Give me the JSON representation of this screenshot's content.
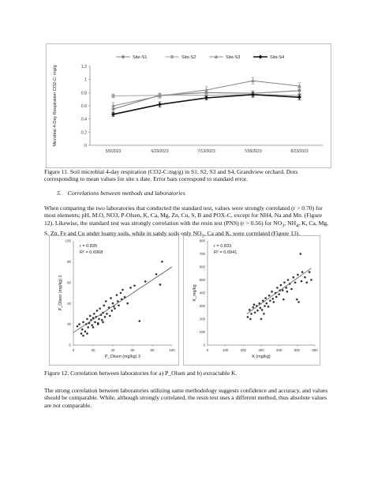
{
  "figure11": {
    "caption": "Figure 11. Soil microbial 4-day respiration (CO2-C:mg/g) in S1, S2, S3 and S4, Grandview orchard. Dots corresponding to mean values for site x date. Error bars correspond to standard error.",
    "chart_data": {
      "type": "line",
      "ylabel": "Microbial 4-Day Respiration CO2-C: mg/g",
      "xlabel": "",
      "categories": [
        "5/9/2023",
        "6/29/2023",
        "7/13/2023",
        "7/28/2023",
        "8/23/2023"
      ],
      "ylim": [
        0,
        1.2
      ],
      "yticks": [
        0,
        0.2,
        0.4,
        0.6,
        0.8,
        1.0,
        1.2
      ],
      "grid": false,
      "legend_position": "top",
      "series": [
        {
          "name": "Site-S1",
          "color": "#808080",
          "marker": "diamond",
          "values": [
            0.55,
            0.76,
            0.8,
            0.79,
            0.83
          ],
          "err": [
            0.04,
            0.03,
            0.04,
            0.04,
            0.04
          ]
        },
        {
          "name": "Site-S2",
          "color": "#a6a6a6",
          "marker": "square",
          "values": [
            0.75,
            0.76,
            0.76,
            0.77,
            0.76
          ],
          "err": [
            0.03,
            0.03,
            0.03,
            0.03,
            0.03
          ]
        },
        {
          "name": "Site-S3",
          "color": "#8c8c8c",
          "marker": "triangle",
          "values": [
            0.6,
            0.75,
            0.84,
            0.98,
            0.9
          ],
          "err": [
            0.05,
            0.04,
            0.05,
            0.05,
            0.05
          ]
        },
        {
          "name": "Site-S4",
          "color": "#111111",
          "marker": "diamond",
          "values": [
            0.47,
            0.62,
            0.72,
            0.77,
            0.73
          ],
          "err": [
            0.03,
            0.04,
            0.03,
            0.04,
            0.04
          ]
        }
      ]
    }
  },
  "section": {
    "number": "5.",
    "title": "Correlations between methods and laboratories",
    "paragraph1_a": "When comparing the two laboratories that conducted the standard test, values were strongly correlated (r > 0.70) for most elements; pH, M.O, NO3, P-Olsen, K, Ca, Mg, Zn, Cu, S, B and POX-C, except for NH4, Na and Mn. (Figure 12). Likewise, the standard test was strongly correlation with the resin test (PNS) (r > 0.56) for NO",
    "paragraph1_sub1": "3",
    "paragraph1_b": ", NH",
    "paragraph1_sub2": "4",
    "paragraph1_c": ", K, Ca, Mg, S, Zn, Fe and Cu under loamy soils, while in sandy soils only NO",
    "paragraph1_sub3": "3",
    "paragraph1_d": ", Ca and K, were correlated (Figure 13)."
  },
  "figure12": {
    "caption": "Figure 12. Correlation between laboratories for a) P_Olsen and b) extractable K.",
    "panel_a": {
      "chart_data": {
        "type": "scatter",
        "xlabel": "P_Olsen (mg/kg) 3",
        "ylabel": "P_Olsen (mg/kg) 1",
        "r_label": "r = 0.835",
        "r2_label": "R² = 0.6968",
        "xlim": [
          0,
          100
        ],
        "ylim": [
          0,
          100
        ],
        "xticks": [
          0,
          20,
          40,
          60,
          80,
          100
        ],
        "yticks": [
          0,
          20,
          40,
          60,
          80,
          100
        ],
        "trend": [
          [
            0,
            12
          ],
          [
            100,
            75
          ]
        ],
        "points": [
          [
            4,
            18
          ],
          [
            6,
            20
          ],
          [
            8,
            11
          ],
          [
            9,
            15
          ],
          [
            10,
            22
          ],
          [
            12,
            13
          ],
          [
            13,
            20
          ],
          [
            14,
            25
          ],
          [
            15,
            17
          ],
          [
            16,
            21
          ],
          [
            17,
            28
          ],
          [
            18,
            24
          ],
          [
            19,
            19
          ],
          [
            20,
            26
          ],
          [
            21,
            30
          ],
          [
            22,
            22
          ],
          [
            23,
            27
          ],
          [
            24,
            33
          ],
          [
            25,
            20
          ],
          [
            26,
            25
          ],
          [
            27,
            35
          ],
          [
            28,
            29
          ],
          [
            29,
            24
          ],
          [
            30,
            31
          ],
          [
            31,
            38
          ],
          [
            32,
            27
          ],
          [
            33,
            42
          ],
          [
            34,
            30
          ],
          [
            36,
            36
          ],
          [
            37,
            28
          ],
          [
            38,
            45
          ],
          [
            39,
            33
          ],
          [
            40,
            40
          ],
          [
            41,
            37
          ],
          [
            42,
            35
          ],
          [
            44,
            48
          ],
          [
            45,
            42
          ],
          [
            46,
            38
          ],
          [
            48,
            50
          ],
          [
            49,
            44
          ],
          [
            50,
            53
          ],
          [
            52,
            46
          ],
          [
            55,
            40
          ],
          [
            58,
            55
          ],
          [
            62,
            57
          ],
          [
            67,
            23
          ],
          [
            73,
            61
          ],
          [
            84,
            68
          ],
          [
            88,
            58
          ],
          [
            90,
            80
          ],
          [
            10,
            9
          ],
          [
            14,
            11
          ],
          [
            20,
            17
          ],
          [
            25,
            21
          ],
          [
            30,
            22
          ]
        ]
      }
    },
    "panel_b": {
      "chart_data": {
        "type": "scatter",
        "xlabel": "K (mg/kg)",
        "ylabel": "K_mg/kg",
        "r_label": "r = 0.833",
        "r2_label": "R² = 0.6941",
        "xlim": [
          0,
          600
        ],
        "ylim": [
          0,
          800
        ],
        "xticks": [
          0,
          100,
          200,
          300,
          400,
          500,
          600
        ],
        "yticks": [
          0,
          100,
          200,
          300,
          400,
          500,
          600,
          700,
          800
        ],
        "trend": [
          [
            220,
            240
          ],
          [
            580,
            590
          ]
        ],
        "points": [
          [
            225,
            215
          ],
          [
            235,
            270
          ],
          [
            245,
            240
          ],
          [
            255,
            290
          ],
          [
            265,
            250
          ],
          [
            275,
            300
          ],
          [
            280,
            265
          ],
          [
            290,
            320
          ],
          [
            295,
            285
          ],
          [
            305,
            270
          ],
          [
            310,
            340
          ],
          [
            320,
            300
          ],
          [
            325,
            360
          ],
          [
            330,
            320
          ],
          [
            340,
            295
          ],
          [
            345,
            380
          ],
          [
            350,
            340
          ],
          [
            360,
            410
          ],
          [
            365,
            355
          ],
          [
            370,
            330
          ],
          [
            380,
            400
          ],
          [
            385,
            370
          ],
          [
            390,
            440
          ],
          [
            400,
            390
          ],
          [
            405,
            420
          ],
          [
            410,
            460
          ],
          [
            420,
            420
          ],
          [
            425,
            350
          ],
          [
            430,
            480
          ],
          [
            440,
            440
          ],
          [
            445,
            410
          ],
          [
            450,
            500
          ],
          [
            460,
            470
          ],
          [
            470,
            430
          ],
          [
            480,
            520
          ],
          [
            490,
            480
          ],
          [
            500,
            350
          ],
          [
            505,
            540
          ],
          [
            510,
            330
          ],
          [
            520,
            700
          ],
          [
            525,
            490
          ],
          [
            530,
            560
          ],
          [
            545,
            520
          ],
          [
            555,
            480
          ],
          [
            570,
            560
          ],
          [
            580,
            500
          ],
          [
            300,
            200
          ],
          [
            315,
            240
          ],
          [
            240,
            200
          ],
          [
            260,
            310
          ]
        ]
      }
    }
  },
  "paragraph2": "The strong correlation between laboratories utilizing same methodology suggests confidence and accuracy, and values should be comparable. While, although strongly correlated, the resin test uses a different method, thus absolute values are not comparable."
}
